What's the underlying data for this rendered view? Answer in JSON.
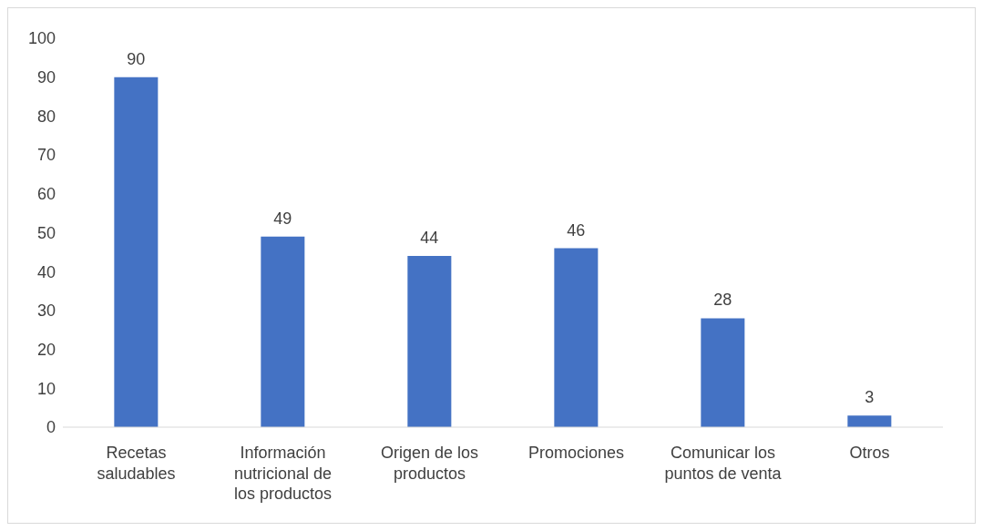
{
  "chart_data": {
    "type": "bar",
    "categories": [
      "Recetas saludables",
      "Información nutricional de los productos",
      "Origen de los productos",
      "Promociones",
      "Comunicar los puntos de venta",
      "Otros"
    ],
    "values": [
      90,
      49,
      44,
      46,
      28,
      3
    ],
    "color": "#4472c4",
    "ylim": [
      0,
      100
    ],
    "yticks": [
      0,
      10,
      20,
      30,
      40,
      50,
      60,
      70,
      80,
      90,
      100
    ],
    "grid": false,
    "data_labels": true
  }
}
